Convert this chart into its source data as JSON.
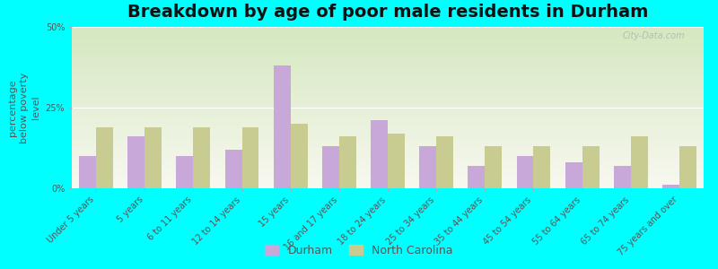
{
  "title": "Breakdown by age of poor male residents in Durham",
  "categories": [
    "Under 5 years",
    "5 years",
    "6 to 11 years",
    "12 to 14 years",
    "15 years",
    "16 and 17 years",
    "18 to 24 years",
    "25 to 34 years",
    "35 to 44 years",
    "45 to 54 years",
    "55 to 64 years",
    "65 to 74 years",
    "75 years and over"
  ],
  "durham_values": [
    10,
    16,
    10,
    12,
    38,
    13,
    21,
    13,
    7,
    10,
    8,
    7,
    1
  ],
  "nc_values": [
    19,
    19,
    19,
    19,
    20,
    16,
    17,
    16,
    13,
    13,
    13,
    16,
    13
  ],
  "durham_color": "#c8a8d8",
  "nc_color": "#c8cc90",
  "background_color": "#00ffff",
  "grad_top_color": "#d5e8c0",
  "grad_bot_color": "#f8f8f0",
  "ylabel": "percentage\nbelow poverty\nlevel",
  "ylim": [
    0,
    50
  ],
  "yticks": [
    0,
    25,
    50
  ],
  "ytick_labels": [
    "0%",
    "25%",
    "50%"
  ],
  "bar_width": 0.35,
  "title_fontsize": 14,
  "axis_label_fontsize": 8,
  "tick_fontsize": 7,
  "legend_labels": [
    "Durham",
    "North Carolina"
  ],
  "watermark": "City-Data.com"
}
